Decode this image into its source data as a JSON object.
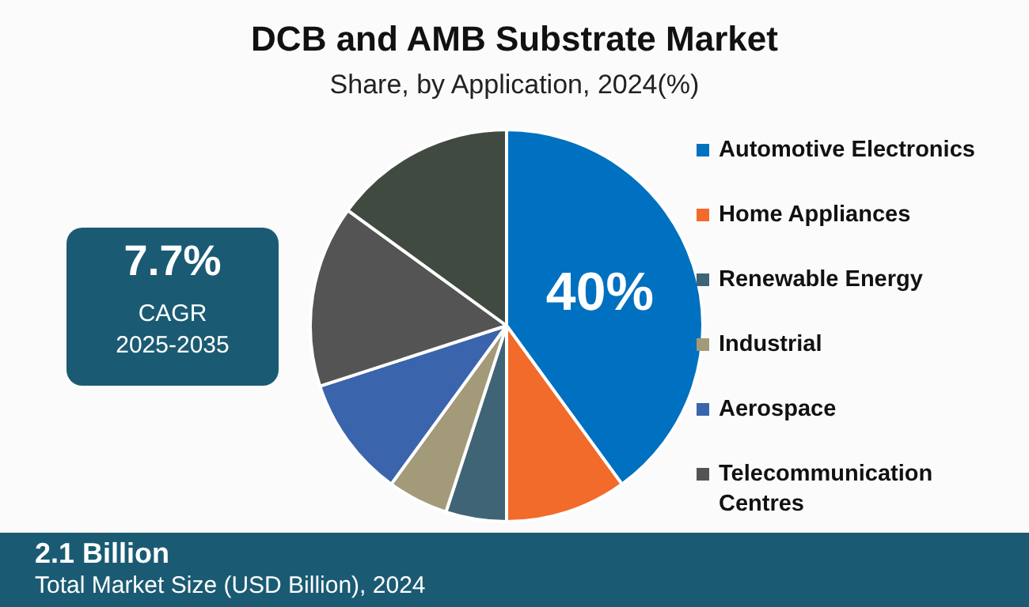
{
  "chart_data": {
    "type": "pie",
    "title": "DCB and AMB Substrate Market",
    "subtitle": "Share, by Application, 2024(%)",
    "categories": [
      "Automotive Electronics",
      "Home Appliances",
      "Renewable Energy",
      "Industrial",
      "Aerospace",
      "Telecommunication Centres",
      null
    ],
    "values": [
      40,
      10,
      5,
      5,
      10,
      15,
      15
    ],
    "colors": [
      "#0070c0",
      "#f26b2a",
      "#3f6475",
      "#a39a7a",
      "#3a64ac",
      "#545454",
      "#414a40"
    ],
    "value_labels": [
      "40%",
      null,
      null,
      null,
      null,
      null,
      null
    ],
    "legend": "right",
    "annotations": [
      "7.7%",
      "CAGR",
      "2025-2035",
      "2.1 Billion",
      "Total Market Size (USD Billion), 2024"
    ]
  }
}
